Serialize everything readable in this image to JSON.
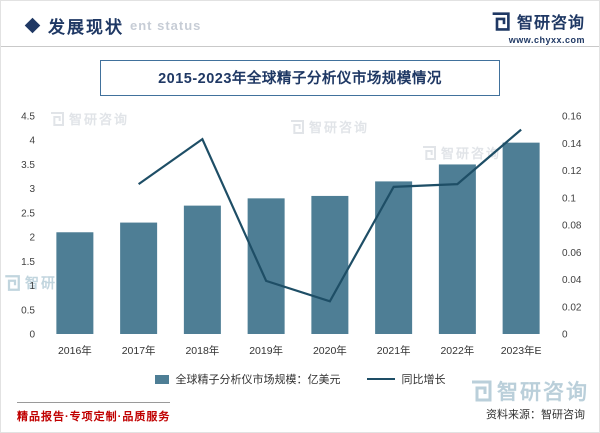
{
  "header": {
    "section_title": "发展现状",
    "watermark_text": "ent status",
    "brand_name": "智研咨询",
    "brand_url": "www.chyxx.com"
  },
  "chart": {
    "title": "2015-2023年全球精子分析仪市场规模情况"
  },
  "chart_data": {
    "type": "bar",
    "title": "2015-2023年全球精子分析仪市场规模情况",
    "categories": [
      "2016年",
      "2017年",
      "2018年",
      "2019年",
      "2020年",
      "2021年",
      "2022年",
      "2023年E"
    ],
    "series": [
      {
        "name": "全球精子分析仪市场规模：亿美元",
        "type": "bar",
        "axis": "left",
        "color": "#4e7e95",
        "values": [
          2.1,
          2.3,
          2.65,
          2.8,
          2.85,
          3.15,
          3.5,
          3.95
        ]
      },
      {
        "name": "同比增长",
        "type": "line",
        "axis": "right",
        "color": "#1e4e66",
        "values": [
          null,
          0.11,
          0.143,
          0.039,
          0.024,
          0.108,
          0.11,
          0.15
        ]
      }
    ],
    "left_axis": {
      "min": 0,
      "max": 4.5,
      "ticks": [
        "0",
        "0.5",
        "1",
        "1.5",
        "2",
        "2.5",
        "3",
        "3.5",
        "4",
        "4.5"
      ]
    },
    "right_axis": {
      "min": 0,
      "max": 0.16,
      "ticks": [
        "0",
        "0.02",
        "0.04",
        "0.06",
        "0.08",
        "0.1",
        "0.12",
        "0.14",
        "0.16"
      ]
    },
    "grid": false,
    "legend_position": "bottom"
  },
  "footer": {
    "tagline": "精品报告·专项定制·品质服务",
    "source": "资料来源：智研咨询",
    "watermark_brand": "智研咨询"
  }
}
